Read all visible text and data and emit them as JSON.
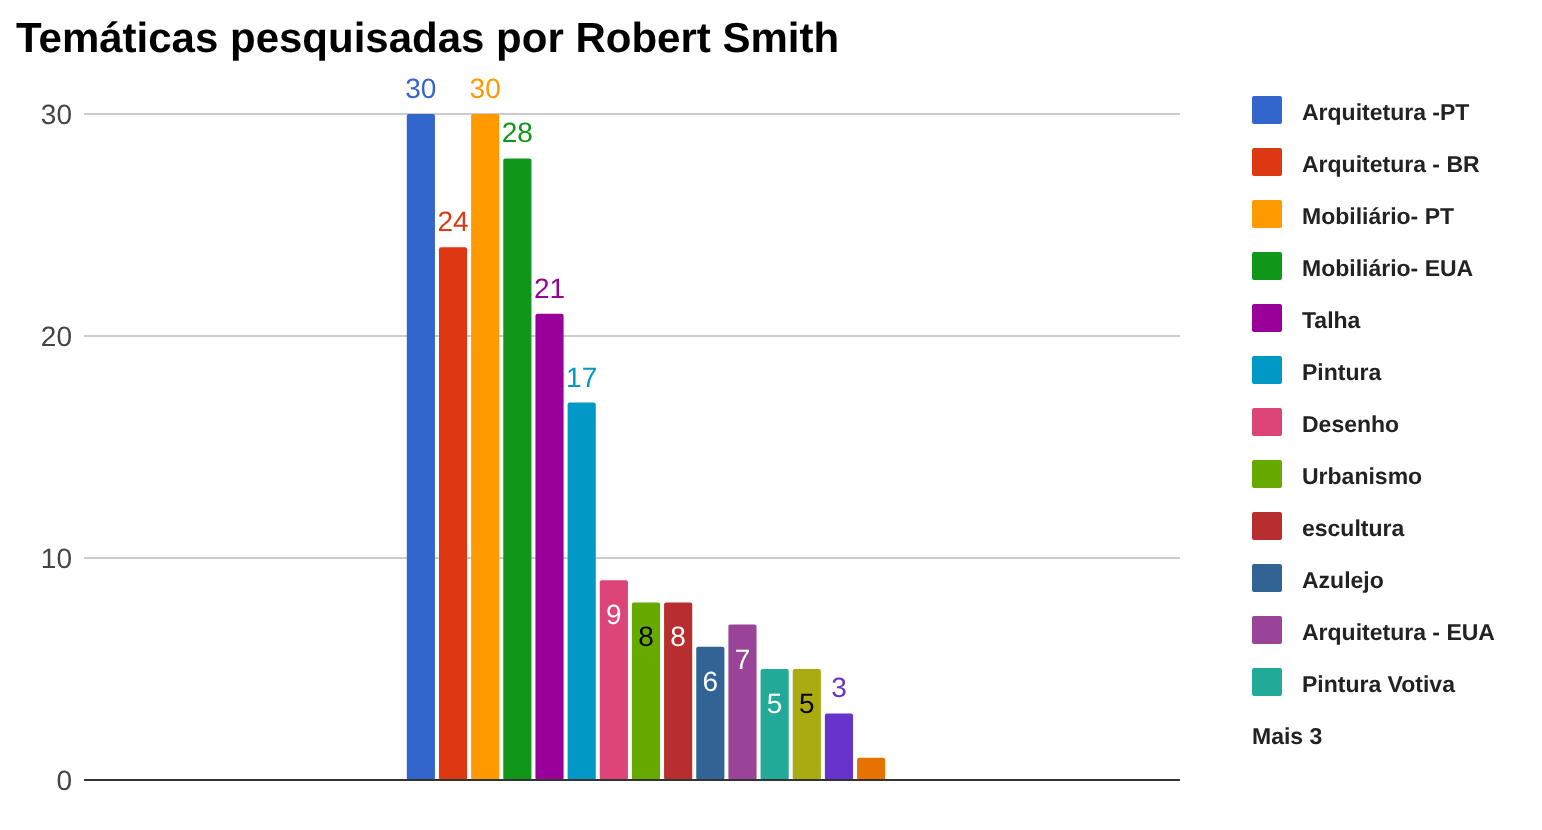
{
  "chart_data": {
    "type": "bar",
    "title": "Temáticas pesquisadas por Robert Smith",
    "categories": [
      null
    ],
    "ylim": [
      0,
      30
    ],
    "yticks": [
      0,
      10,
      20,
      30
    ],
    "grid": "y",
    "legend": "right",
    "annotations": [
      "Mais 3"
    ],
    "series": [
      {
        "name": "Arquitetura -PT",
        "color": "#3366cc",
        "values": [
          30
        ],
        "value_labels": [
          "30"
        ]
      },
      {
        "name": "Arquitetura - BR",
        "color": "#dc3912",
        "values": [
          24
        ],
        "value_labels": [
          "24"
        ]
      },
      {
        "name": "Mobiliário- PT",
        "color": "#ff9900",
        "values": [
          30
        ],
        "value_labels": [
          "30"
        ]
      },
      {
        "name": "Mobiliário- EUA",
        "color": "#109618",
        "values": [
          28
        ],
        "value_labels": [
          "28"
        ]
      },
      {
        "name": "Talha",
        "color": "#990099",
        "values": [
          21
        ],
        "value_labels": [
          "21"
        ]
      },
      {
        "name": "Pintura",
        "color": "#0099c6",
        "values": [
          17
        ],
        "value_labels": [
          "17"
        ]
      },
      {
        "name": "Desenho",
        "color": "#dd4477",
        "values": [
          9
        ],
        "value_labels": [
          "9"
        ]
      },
      {
        "name": "Urbanismo",
        "color": "#66aa00",
        "values": [
          8
        ],
        "value_labels": [
          "8"
        ]
      },
      {
        "name": "escultura",
        "color": "#b82e2e",
        "values": [
          8
        ],
        "value_labels": [
          "8"
        ]
      },
      {
        "name": "Azulejo",
        "color": "#316395",
        "values": [
          6
        ],
        "value_labels": [
          "6"
        ]
      },
      {
        "name": "Arquitetura - EUA",
        "color": "#994499",
        "values": [
          7
        ],
        "value_labels": [
          "7"
        ]
      },
      {
        "name": "Pintura Votiva",
        "color": "#22aa99",
        "values": [
          5
        ],
        "value_labels": [
          "5"
        ]
      },
      {
        "color": "#aaaa11",
        "values": [
          5
        ],
        "value_labels": [
          "5"
        ]
      },
      {
        "color": "#6633cc",
        "values": [
          3
        ],
        "value_labels": [
          "3"
        ]
      },
      {
        "color": "#e67300",
        "values": [
          1
        ],
        "value_labels": [
          null
        ]
      }
    ]
  }
}
